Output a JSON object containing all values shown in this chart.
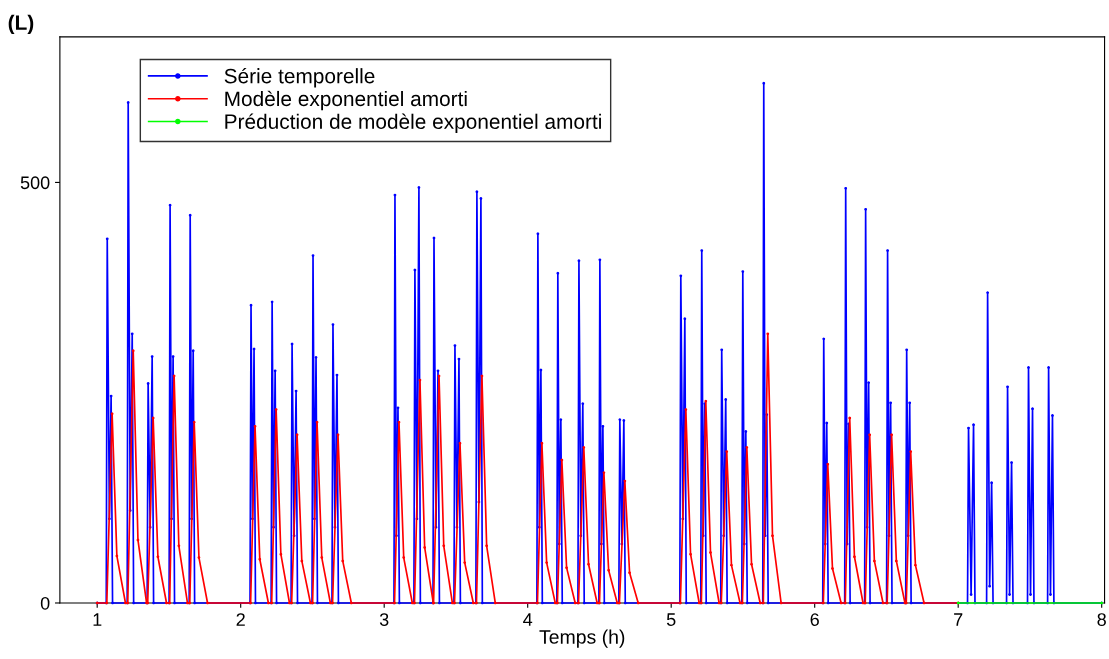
{
  "chart_data": {
    "type": "line",
    "xlabel": "Temps (h)",
    "ylabel": "(L)",
    "xlim": [
      0.74,
      8.02
    ],
    "xticks": [
      1,
      2,
      3,
      4,
      5,
      6,
      7,
      8
    ],
    "ylim": [
      0,
      673
    ],
    "yticks": [
      0,
      500
    ],
    "grid": false,
    "legend": "top left",
    "marker": "circle",
    "line_style": "solid",
    "series": [
      {
        "name": "Série temporelle",
        "color": "#0000ff",
        "x": [
          1.0,
          1.063,
          1.07,
          1.085,
          1.097,
          1.107,
          1.209,
          1.216,
          1.23,
          1.244,
          1.254,
          1.348,
          1.355,
          1.369,
          1.383,
          1.393,
          1.501,
          1.508,
          1.518,
          1.529,
          1.539,
          1.641,
          1.648,
          1.658,
          1.669,
          1.679,
          2.065,
          2.072,
          2.082,
          2.093,
          2.103,
          2.212,
          2.219,
          2.229,
          2.24,
          2.25,
          2.351,
          2.358,
          2.372,
          2.386,
          2.396,
          2.497,
          2.504,
          2.514,
          2.525,
          2.535,
          2.636,
          2.643,
          2.657,
          2.671,
          2.681,
          3.068,
          3.075,
          3.085,
          3.096,
          3.106,
          3.207,
          3.214,
          3.228,
          3.242,
          3.252,
          3.34,
          3.347,
          3.361,
          3.375,
          3.385,
          3.486,
          3.493,
          3.507,
          3.521,
          3.531,
          3.639,
          3.646,
          3.66,
          3.674,
          3.684,
          4.064,
          4.071,
          4.081,
          4.092,
          4.102,
          4.203,
          4.21,
          4.22,
          4.231,
          4.241,
          4.35,
          4.357,
          4.37,
          4.384,
          4.394,
          4.496,
          4.503,
          4.513,
          4.524,
          4.534,
          4.635,
          4.642,
          4.656,
          4.67,
          4.68,
          5.06,
          5.067,
          5.081,
          5.095,
          5.105,
          5.206,
          5.213,
          5.223,
          5.234,
          5.244,
          5.345,
          5.352,
          5.366,
          5.38,
          5.39,
          5.492,
          5.499,
          5.509,
          5.52,
          5.53,
          5.638,
          5.645,
          5.655,
          5.666,
          5.676,
          6.056,
          6.063,
          6.073,
          6.084,
          6.094,
          6.209,
          6.216,
          6.226,
          6.237,
          6.247,
          6.348,
          6.355,
          6.365,
          6.376,
          6.386,
          6.501,
          6.508,
          6.518,
          6.529,
          6.539,
          6.634,
          6.641,
          6.651,
          6.662,
          6.672,
          7.065,
          7.072,
          7.09,
          7.107,
          7.117,
          7.198,
          7.205,
          7.219,
          7.233,
          7.243,
          7.337,
          7.344,
          7.358,
          7.372,
          7.382,
          7.483,
          7.49,
          7.504,
          7.518,
          7.528,
          7.623,
          7.63,
          7.643,
          7.657,
          7.667,
          8.0
        ],
        "values": [
          0,
          0,
          433,
          100,
          246,
          0,
          0,
          595,
          110,
          320,
          0,
          0,
          261,
          90,
          293,
          0,
          0,
          473,
          100,
          293,
          0,
          0,
          461,
          100,
          300,
          0,
          0,
          354,
          100,
          302,
          0,
          0,
          358,
          90,
          276,
          0,
          0,
          308,
          80,
          252,
          0,
          0,
          413,
          100,
          292,
          0,
          0,
          331,
          90,
          271,
          0,
          0,
          485,
          80,
          232,
          0,
          0,
          396,
          100,
          494,
          0,
          0,
          434,
          90,
          276,
          0,
          0,
          306,
          90,
          290,
          0,
          0,
          489,
          120,
          481,
          0,
          0,
          439,
          90,
          277,
          0,
          0,
          392,
          70,
          218,
          0,
          0,
          407,
          80,
          237,
          0,
          0,
          408,
          70,
          210,
          0,
          0,
          218,
          70,
          217,
          0,
          0,
          389,
          100,
          338,
          0,
          0,
          419,
          80,
          237,
          0,
          0,
          301,
          80,
          242,
          0,
          0,
          394,
          70,
          204,
          0,
          0,
          618,
          80,
          224,
          0,
          0,
          314,
          70,
          214,
          0,
          0,
          493,
          70,
          213,
          0,
          0,
          468,
          90,
          262,
          0,
          0,
          419,
          80,
          238,
          0,
          0,
          301,
          80,
          238,
          0,
          0,
          208,
          10,
          212,
          0,
          0,
          369,
          20,
          143,
          0,
          0,
          257,
          10,
          167,
          0,
          0,
          280,
          10,
          231,
          0,
          0,
          280,
          10,
          223,
          0,
          0
        ]
      },
      {
        "name": "Modèle exponentiel amorti",
        "color": "#ff0000",
        "x": [
          1.0,
          1.067,
          1.104,
          1.137,
          1.197,
          1.213,
          1.251,
          1.284,
          1.344,
          1.352,
          1.39,
          1.423,
          1.483,
          1.505,
          1.536,
          1.569,
          1.629,
          1.645,
          1.676,
          1.709,
          1.769,
          2.069,
          2.1,
          2.133,
          2.193,
          2.216,
          2.247,
          2.28,
          2.34,
          2.355,
          2.393,
          2.426,
          2.486,
          2.501,
          2.532,
          2.565,
          2.625,
          2.64,
          2.678,
          2.711,
          2.771,
          3.072,
          3.103,
          3.136,
          3.196,
          3.211,
          3.249,
          3.282,
          3.342,
          3.344,
          3.382,
          3.415,
          3.475,
          3.49,
          3.528,
          3.561,
          3.621,
          3.643,
          3.681,
          3.714,
          3.774,
          4.068,
          4.099,
          4.132,
          4.192,
          4.207,
          4.238,
          4.271,
          4.331,
          4.354,
          4.391,
          4.424,
          4.484,
          4.5,
          4.531,
          4.564,
          4.624,
          4.639,
          4.677,
          4.71,
          4.77,
          5.064,
          5.102,
          5.135,
          5.195,
          5.21,
          5.241,
          5.274,
          5.334,
          5.349,
          5.387,
          5.42,
          5.48,
          5.496,
          5.527,
          5.56,
          5.62,
          5.642,
          5.673,
          5.706,
          5.766,
          6.06,
          6.091,
          6.124,
          6.184,
          6.213,
          6.244,
          6.277,
          6.337,
          6.352,
          6.383,
          6.416,
          6.476,
          6.505,
          6.536,
          6.569,
          6.629,
          6.638,
          6.669,
          6.702,
          6.762,
          7.0
        ],
        "values": [
          0,
          0,
          225,
          56,
          0,
          0,
          300,
          75,
          0,
          0,
          220,
          55,
          0,
          0,
          270,
          68,
          0,
          0,
          215,
          54,
          0,
          0,
          210,
          52,
          0,
          0,
          230,
          58,
          0,
          0,
          200,
          50,
          0,
          0,
          215,
          54,
          0,
          0,
          200,
          50,
          0,
          0,
          215,
          54,
          0,
          0,
          265,
          66,
          0,
          0,
          270,
          68,
          0,
          0,
          190,
          48,
          0,
          0,
          270,
          68,
          0,
          0,
          190,
          48,
          0,
          0,
          170,
          42,
          0,
          0,
          185,
          46,
          0,
          0,
          155,
          39,
          0,
          0,
          145,
          36,
          0,
          0,
          230,
          58,
          0,
          0,
          240,
          60,
          0,
          0,
          180,
          45,
          0,
          0,
          185,
          46,
          0,
          0,
          320,
          80,
          0,
          0,
          165,
          41,
          0,
          0,
          220,
          55,
          0,
          0,
          200,
          50,
          0,
          0,
          200,
          50,
          0,
          0,
          180,
          45,
          0,
          0
        ]
      },
      {
        "name": "Préduction de modèle exponentiel amorti",
        "color": "#00ff00",
        "x": [
          7.0,
          8.0
        ],
        "values": [
          0,
          0
        ]
      }
    ]
  }
}
